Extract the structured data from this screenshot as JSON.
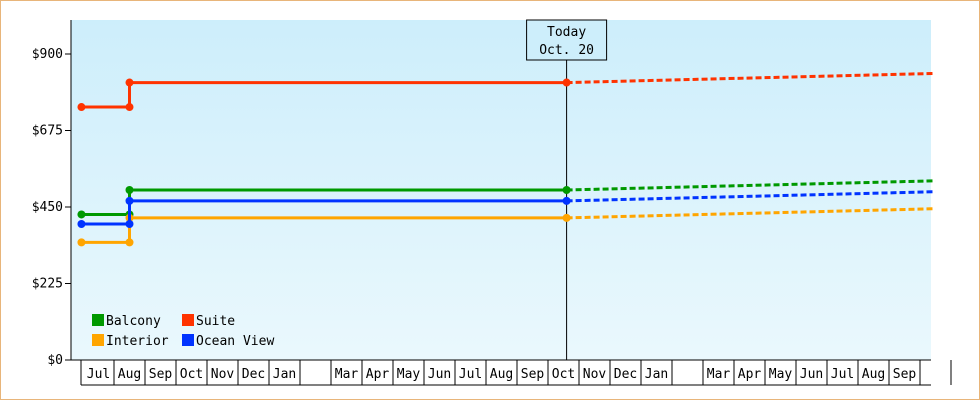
{
  "chart_data": {
    "type": "line",
    "title": "",
    "xlabel": "",
    "ylabel": "",
    "ylim": [
      0,
      1000
    ],
    "yticks": [
      0,
      225,
      450,
      675,
      900
    ],
    "ytick_labels": [
      "$0",
      "$225",
      "$450",
      "$675",
      "$900"
    ],
    "xticks": [
      {
        "label": "Jul",
        "i": 0
      },
      {
        "label": "Aug",
        "i": 1
      },
      {
        "label": "Sep",
        "i": 2
      },
      {
        "label": "Oct",
        "i": 3
      },
      {
        "label": "Nov",
        "i": 4
      },
      {
        "label": "Dec",
        "i": 5
      },
      {
        "label": "Jan",
        "i": 6
      },
      {
        "label": "Mar",
        "i": 8
      },
      {
        "label": "Apr",
        "i": 9
      },
      {
        "label": "May",
        "i": 10
      },
      {
        "label": "Jun",
        "i": 11
      },
      {
        "label": "Jul",
        "i": 12
      },
      {
        "label": "Aug",
        "i": 13
      },
      {
        "label": "Sep",
        "i": 14
      },
      {
        "label": "Oct",
        "i": 15
      },
      {
        "label": "Nov",
        "i": 16
      },
      {
        "label": "Dec",
        "i": 17
      },
      {
        "label": "Jan",
        "i": 18
      },
      {
        "label": "Mar",
        "i": 20
      },
      {
        "label": "Apr",
        "i": 21
      },
      {
        "label": "May",
        "i": 22
      },
      {
        "label": "Jun",
        "i": 23
      },
      {
        "label": "Jul",
        "i": 24
      },
      {
        "label": "Aug",
        "i": 25
      },
      {
        "label": "Sep",
        "i": 26
      }
    ],
    "today": {
      "line1": "Today",
      "line2": "Oct. 20",
      "i": 15.6
    },
    "legend": {
      "placement": "bottom-left"
    },
    "series": [
      {
        "name": "Balcony",
        "color": "#009900",
        "history": [
          [
            -0.05,
            428
          ],
          [
            1.5,
            428
          ],
          [
            1.5,
            500
          ],
          [
            15.6,
            500
          ]
        ],
        "points": [
          [
            -0.05,
            428
          ],
          [
            1.5,
            428
          ],
          [
            1.5,
            500
          ],
          [
            15.6,
            500
          ]
        ],
        "forecast": [
          [
            15.6,
            500
          ],
          [
            27.5,
            527
          ]
        ]
      },
      {
        "name": "Suite",
        "color": "#ff3300",
        "history": [
          [
            -0.05,
            744
          ],
          [
            1.5,
            744
          ],
          [
            1.5,
            816
          ],
          [
            15.6,
            816
          ]
        ],
        "points": [
          [
            -0.05,
            744
          ],
          [
            1.5,
            744
          ],
          [
            1.5,
            816
          ],
          [
            15.6,
            816
          ]
        ],
        "forecast": [
          [
            15.6,
            816
          ],
          [
            27.5,
            843
          ]
        ]
      },
      {
        "name": "Interior",
        "color": "#ffa500",
        "history": [
          [
            -0.05,
            346
          ],
          [
            1.5,
            346
          ],
          [
            1.5,
            418
          ],
          [
            15.6,
            418
          ]
        ],
        "points": [
          [
            -0.05,
            346
          ],
          [
            1.5,
            346
          ],
          [
            1.5,
            418
          ],
          [
            15.6,
            418
          ]
        ],
        "forecast": [
          [
            15.6,
            418
          ],
          [
            27.5,
            445
          ]
        ]
      },
      {
        "name": "Ocean View",
        "color": "#0033ff",
        "history": [
          [
            -0.05,
            400
          ],
          [
            1.5,
            400
          ],
          [
            1.5,
            468
          ],
          [
            15.6,
            468
          ]
        ],
        "points": [
          [
            -0.05,
            400
          ],
          [
            1.5,
            400
          ],
          [
            1.5,
            468
          ],
          [
            15.6,
            468
          ]
        ],
        "forecast": [
          [
            15.6,
            468
          ],
          [
            27.5,
            495
          ]
        ]
      }
    ]
  }
}
